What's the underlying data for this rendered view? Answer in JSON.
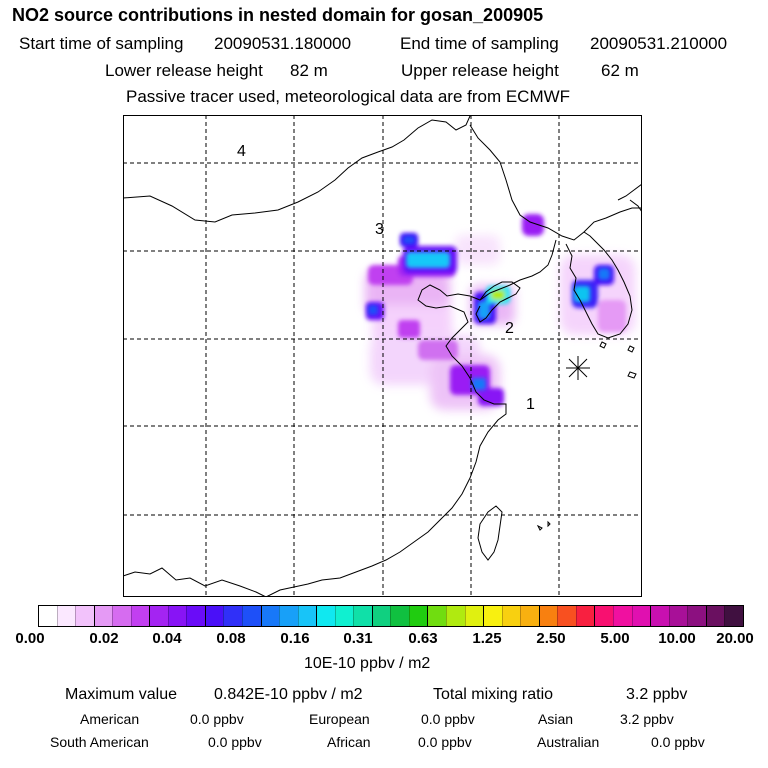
{
  "header": {
    "title": "NO2 source contributions in nested domain for gosan_200905",
    "start_label": "Start time of sampling",
    "start_value": "20090531.180000",
    "end_label": "End time of sampling",
    "end_value": "20090531.210000",
    "lower_label": "Lower release height",
    "lower_value": "82 m",
    "upper_label": "Upper release height",
    "upper_value": "62 m",
    "note": "Passive tracer used, meteorological data are from ECMWF"
  },
  "map": {
    "source_labels": [
      "1",
      "2",
      "3",
      "4"
    ],
    "receptor_marker": "star-icon"
  },
  "colorbar": {
    "tick_labels": [
      "0.00",
      "0.02",
      "0.04",
      "0.08",
      "0.16",
      "0.31",
      "0.63",
      "1.25",
      "2.50",
      "5.00",
      "10.00",
      "20.00"
    ],
    "colors": [
      "#ffffff",
      "#fbe8ff",
      "#f2c2fb",
      "#e59af5",
      "#d66cf0",
      "#c23ff0",
      "#a424f2",
      "#8814f5",
      "#6a0cf8",
      "#4a10f8",
      "#3030f8",
      "#1e50f8",
      "#1878f8",
      "#18a0f8",
      "#18c4f8",
      "#10e8f0",
      "#10f0d0",
      "#10e0a8",
      "#10d080",
      "#10c040",
      "#20cc10",
      "#70dd10",
      "#b0ea10",
      "#e0f010",
      "#f8f010",
      "#f8d010",
      "#f8b010",
      "#f88010",
      "#f85020",
      "#f82040",
      "#f81070",
      "#f010a0",
      "#e010b0",
      "#c810b0",
      "#a81098",
      "#8c1080",
      "#6a1060",
      "#401040"
    ],
    "units": "10E-10 ppbv / m2"
  },
  "footer": {
    "max_label": "Maximum value",
    "max_value": "0.842E-10 ppbv / m2",
    "total_label": "Total mixing ratio",
    "total_value": "3.2 ppbv",
    "regions": [
      {
        "name": "American",
        "value": "0.0 ppbv"
      },
      {
        "name": "European",
        "value": "0.0 ppbv"
      },
      {
        "name": "Asian",
        "value": "3.2 ppbv"
      },
      {
        "name": "South American",
        "value": "0.0 ppbv"
      },
      {
        "name": "African",
        "value": "0.0 ppbv"
      },
      {
        "name": "Australian",
        "value": "0.0 ppbv"
      }
    ]
  }
}
